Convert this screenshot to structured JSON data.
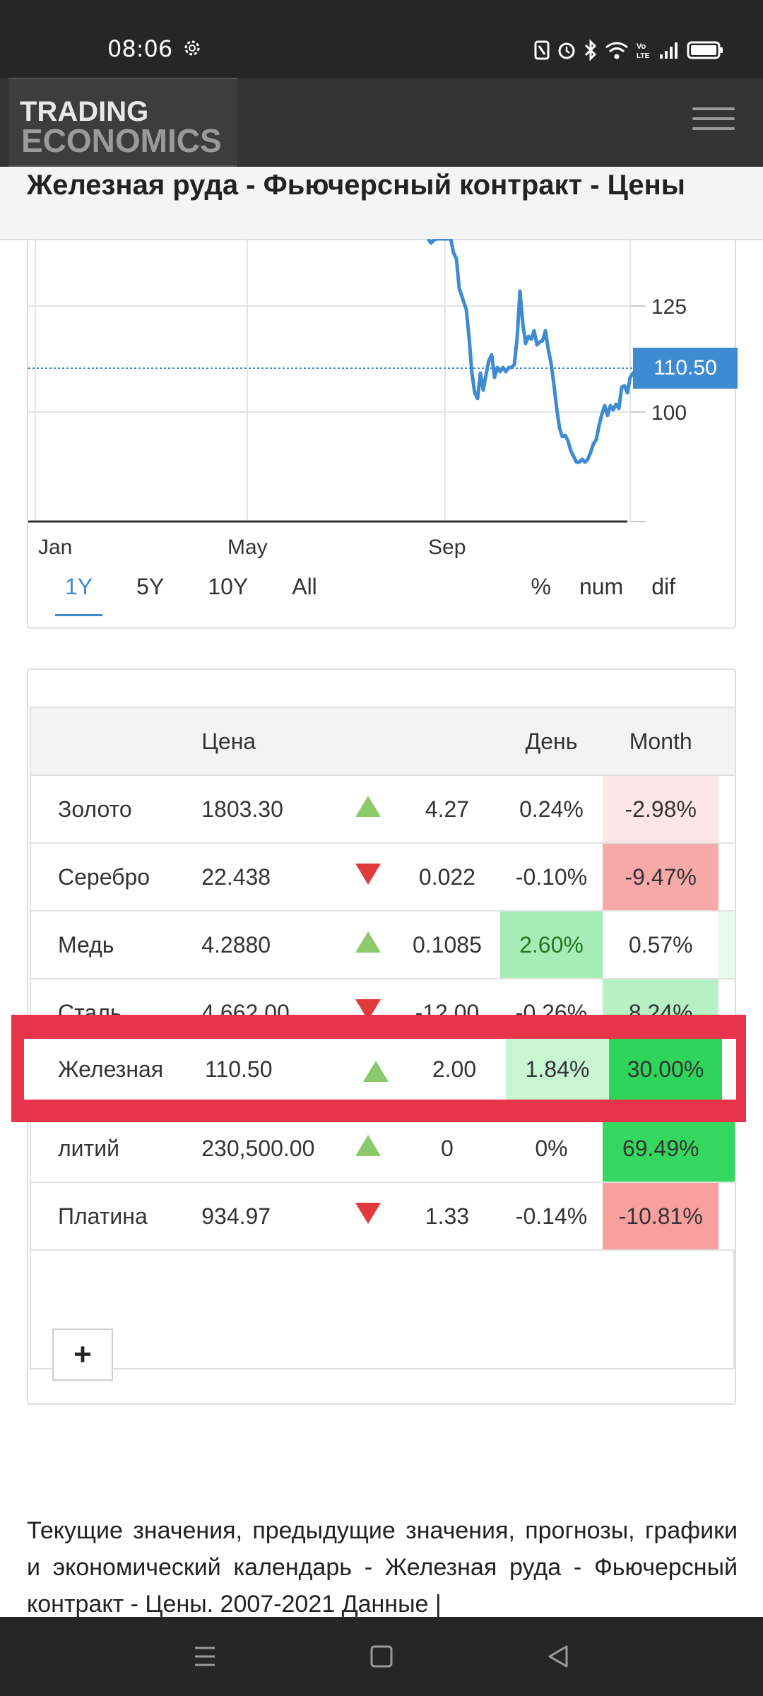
{
  "status_bar": {
    "time": "08:06"
  },
  "header": {
    "logo_line1": "TRADING",
    "logo_line2": "ECONOMICS"
  },
  "page_title": "Железная руда - Фьючерсный контракт - Цены",
  "chart": {
    "current_price": "110.50",
    "y_ticks": [
      "125",
      "100"
    ],
    "x_ticks": [
      "Jan",
      "May",
      "Sep"
    ],
    "range_tabs": [
      {
        "label": "1Y",
        "active": true
      },
      {
        "label": "5Y",
        "active": false
      },
      {
        "label": "10Y",
        "active": false
      },
      {
        "label": "All",
        "active": false
      }
    ],
    "mode_tabs": [
      "%",
      "num",
      "dif"
    ],
    "line_color": "#3f8bd1"
  },
  "table": {
    "headers": {
      "name": "",
      "price": "Цена",
      "change": "",
      "day": "День",
      "month": "Month"
    },
    "rows": [
      {
        "name": "Золото",
        "price": "1803.30",
        "direction": "up",
        "change": "4.27",
        "day": "0.24%",
        "month": "-2.98%",
        "day_bg": "#ffffff",
        "month_bg": "#fde6e6",
        "tail_bg": "#ffffff"
      },
      {
        "name": "Серебро",
        "price": "22.438",
        "direction": "down",
        "change": "0.022",
        "day": "-0.10%",
        "month": "-9.47%",
        "day_bg": "#ffffff",
        "month_bg": "#f8a9a9",
        "tail_bg": "#ffffff"
      },
      {
        "name": "Медь",
        "price": "4.2880",
        "direction": "up",
        "change": "0.1085",
        "day": "2.60%",
        "month": "0.57%",
        "day_bg": "#a6ecb6",
        "month_bg": "#ffffff",
        "tail_bg": "#e9fbed"
      },
      {
        "name": "Сталь",
        "price": "4,662.00",
        "direction": "down",
        "change": "-12.00",
        "day": "-0.26%",
        "month": "8.24%",
        "day_bg": "#ffffff",
        "month_bg": "#b6f0c3",
        "tail_bg": "#ffffff"
      },
      {
        "name": "Железная",
        "price": "110.50",
        "direction": "up",
        "change": "2.00",
        "day": "1.84%",
        "month": "30.00%",
        "day_bg": "#c8f5d2",
        "month_bg": "#2fd45a",
        "tail_bg": "#ffffff"
      },
      {
        "name": "литий",
        "price": "230,500.00",
        "direction": "up",
        "change": "0",
        "day": "0%",
        "month": "69.49%",
        "day_bg": "#ffffff",
        "month_bg": "#35d85e",
        "tail_bg": "#35d85e"
      },
      {
        "name": "Платина",
        "price": "934.97",
        "direction": "down",
        "change": "1.33",
        "day": "-0.14%",
        "month": "-10.81%",
        "day_bg": "#ffffff",
        "month_bg": "#f8a0a0",
        "tail_bg": "#ffffff"
      }
    ],
    "add_label": "+"
  },
  "description": "Текущие значения, предыдущие значения, прогнозы, графики и экономический календарь - Железная руда - Фьючерсный контракт - Цены. 2007-2021 Данные |"
}
